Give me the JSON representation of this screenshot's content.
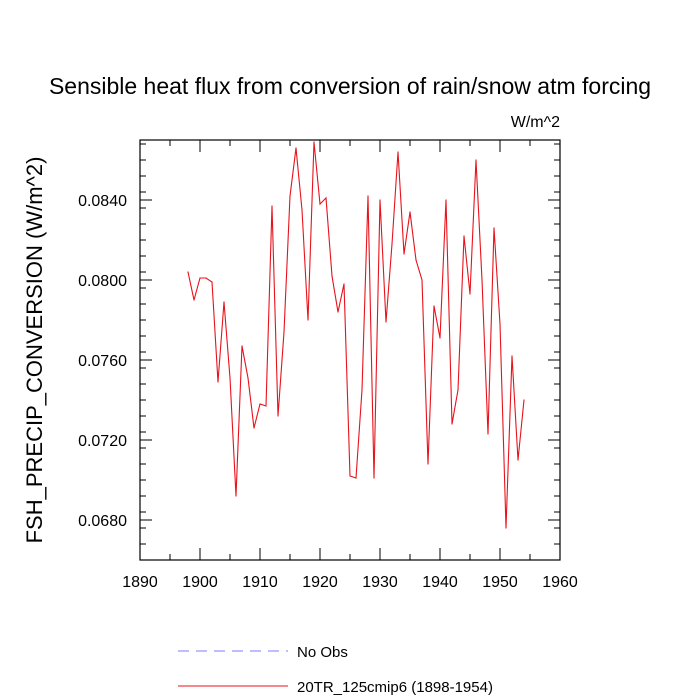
{
  "chart_data": {
    "type": "line",
    "title": "Sensible heat flux from conversion of rain/snow atm forcing",
    "units": "W/m^2",
    "xlabel": "",
    "ylabel": "FSH_PRECIP_CONVERSION  (W/m^2)",
    "xlim": [
      1890,
      1960
    ],
    "ylim": [
      0.066,
      0.087
    ],
    "xticks": [
      1890,
      1900,
      1910,
      1920,
      1930,
      1940,
      1950,
      1960
    ],
    "yticks": [
      0.068,
      0.072,
      0.076,
      0.08,
      0.084
    ],
    "ytick_labels": [
      "0.0680",
      "0.0720",
      "0.0760",
      "0.0800",
      "0.0840"
    ],
    "series": [
      {
        "name": "20TR_125cmip6 (1898-1954)",
        "color": "#e8121b",
        "x": [
          1898,
          1899,
          1900,
          1901,
          1902,
          1903,
          1904,
          1905,
          1906,
          1907,
          1908,
          1909,
          1910,
          1911,
          1912,
          1913,
          1914,
          1915,
          1916,
          1917,
          1918,
          1919,
          1920,
          1921,
          1922,
          1923,
          1924,
          1925,
          1926,
          1927,
          1928,
          1929,
          1930,
          1931,
          1932,
          1933,
          1934,
          1935,
          1936,
          1937,
          1938,
          1939,
          1940,
          1941,
          1942,
          1943,
          1944,
          1945,
          1946,
          1947,
          1948,
          1949,
          1950,
          1951,
          1952,
          1953,
          1954
        ],
        "values": [
          0.0804,
          0.079,
          0.0801,
          0.0801,
          0.0799,
          0.0749,
          0.0789,
          0.0751,
          0.0692,
          0.0767,
          0.0751,
          0.0726,
          0.0738,
          0.0737,
          0.0837,
          0.0732,
          0.0774,
          0.0842,
          0.0866,
          0.0835,
          0.078,
          0.0869,
          0.0838,
          0.0841,
          0.0802,
          0.0784,
          0.0798,
          0.0702,
          0.0701,
          0.0745,
          0.0842,
          0.0701,
          0.084,
          0.0779,
          0.0818,
          0.0864,
          0.0813,
          0.0834,
          0.081,
          0.08,
          0.0708,
          0.0787,
          0.0771,
          0.084,
          0.0728,
          0.0745,
          0.0822,
          0.0793,
          0.086,
          0.08,
          0.0723,
          0.0826,
          0.0778,
          0.0676,
          0.0762,
          0.071,
          0.074
        ]
      }
    ],
    "legend": [
      {
        "label": "No Obs",
        "color": "#7b7bff",
        "dash": "dashed"
      },
      {
        "label": "20TR_125cmip6 (1898-1954)",
        "color": "#e8121b",
        "dash": "solid"
      }
    ]
  }
}
